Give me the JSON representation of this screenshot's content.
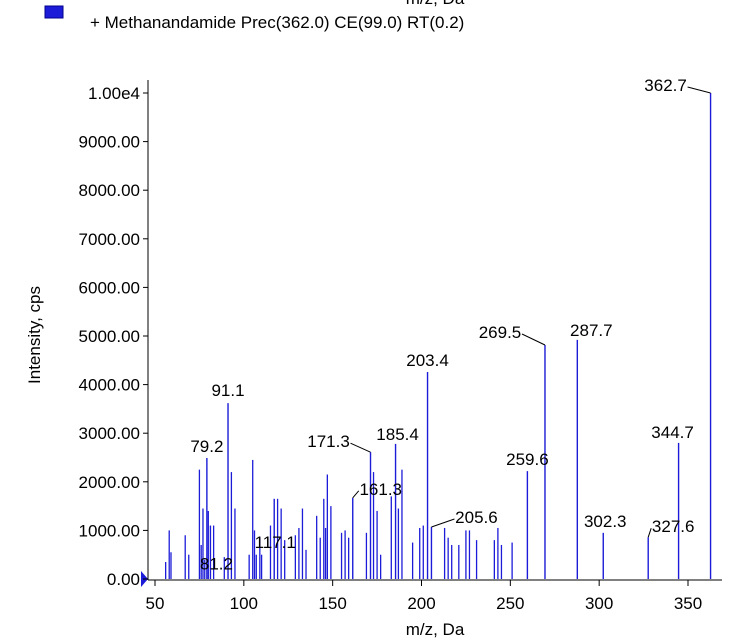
{
  "chart_data": {
    "type": "spectrum",
    "header_text": "m/z, Da",
    "legend": "+ Methanandamide Prec(362.0) CE(99.0) RT(0.2)",
    "color": "#1c1cd8",
    "xlabel": "m/z, Da",
    "ylabel": "Intensity, cps",
    "xlim": [
      46,
      368
    ],
    "ylim": [
      0,
      10000
    ],
    "xticks": [
      50,
      100,
      150,
      200,
      250,
      300,
      350
    ],
    "yticks": [
      {
        "value": 0,
        "label": "0.00"
      },
      {
        "value": 1000,
        "label": "1000.00"
      },
      {
        "value": 2000,
        "label": "2000.00"
      },
      {
        "value": 3000,
        "label": "3000.00"
      },
      {
        "value": 4000,
        "label": "4000.00"
      },
      {
        "value": 5000,
        "label": "5000.00"
      },
      {
        "value": 6000,
        "label": "6000.00"
      },
      {
        "value": 7000,
        "label": "7000.00"
      },
      {
        "value": 8000,
        "label": "8000.00"
      },
      {
        "value": 9000,
        "label": "9000.00"
      },
      {
        "value": 10000,
        "label": "1.00e4"
      }
    ],
    "labeled_peaks": {
      "x": [
        362.7,
        287.7,
        269.5,
        203.4,
        91.1,
        344.7,
        185.4,
        171.3,
        79.2,
        259.6,
        161.3,
        117.1,
        81.2,
        205.6,
        302.3,
        327.6
      ],
      "values": [
        10000,
        4920,
        4815,
        4260,
        3620,
        2800,
        2780,
        2610,
        2490,
        2220,
        1670,
        1650,
        1100,
        1070,
        950,
        860
      ]
    },
    "x": [
      56,
      58,
      59,
      67,
      69,
      75,
      76,
      77,
      78,
      80,
      83,
      89,
      93,
      95,
      103,
      105,
      106,
      107,
      109,
      110,
      115,
      119,
      121,
      123,
      129,
      131,
      133,
      135,
      141,
      143,
      145,
      146,
      147,
      149,
      155,
      157,
      159,
      169,
      173,
      175,
      177,
      183,
      187,
      189,
      195,
      199,
      201,
      213,
      215,
      217,
      221,
      225,
      227,
      231,
      241,
      243,
      245,
      251
    ],
    "values": [
      350,
      1000,
      550,
      900,
      500,
      2250,
      700,
      1450,
      400,
      1400,
      1100,
      450,
      2200,
      1450,
      500,
      2450,
      1000,
      500,
      850,
      500,
      1100,
      1650,
      1450,
      800,
      900,
      1050,
      1450,
      600,
      1300,
      850,
      1650,
      1050,
      2150,
      1500,
      950,
      1000,
      850,
      950,
      2200,
      1400,
      500,
      1700,
      1450,
      2250,
      750,
      1050,
      1100,
      1050,
      850,
      700,
      700,
      1000,
      1000,
      800,
      800,
      1050,
      700,
      750
    ]
  }
}
